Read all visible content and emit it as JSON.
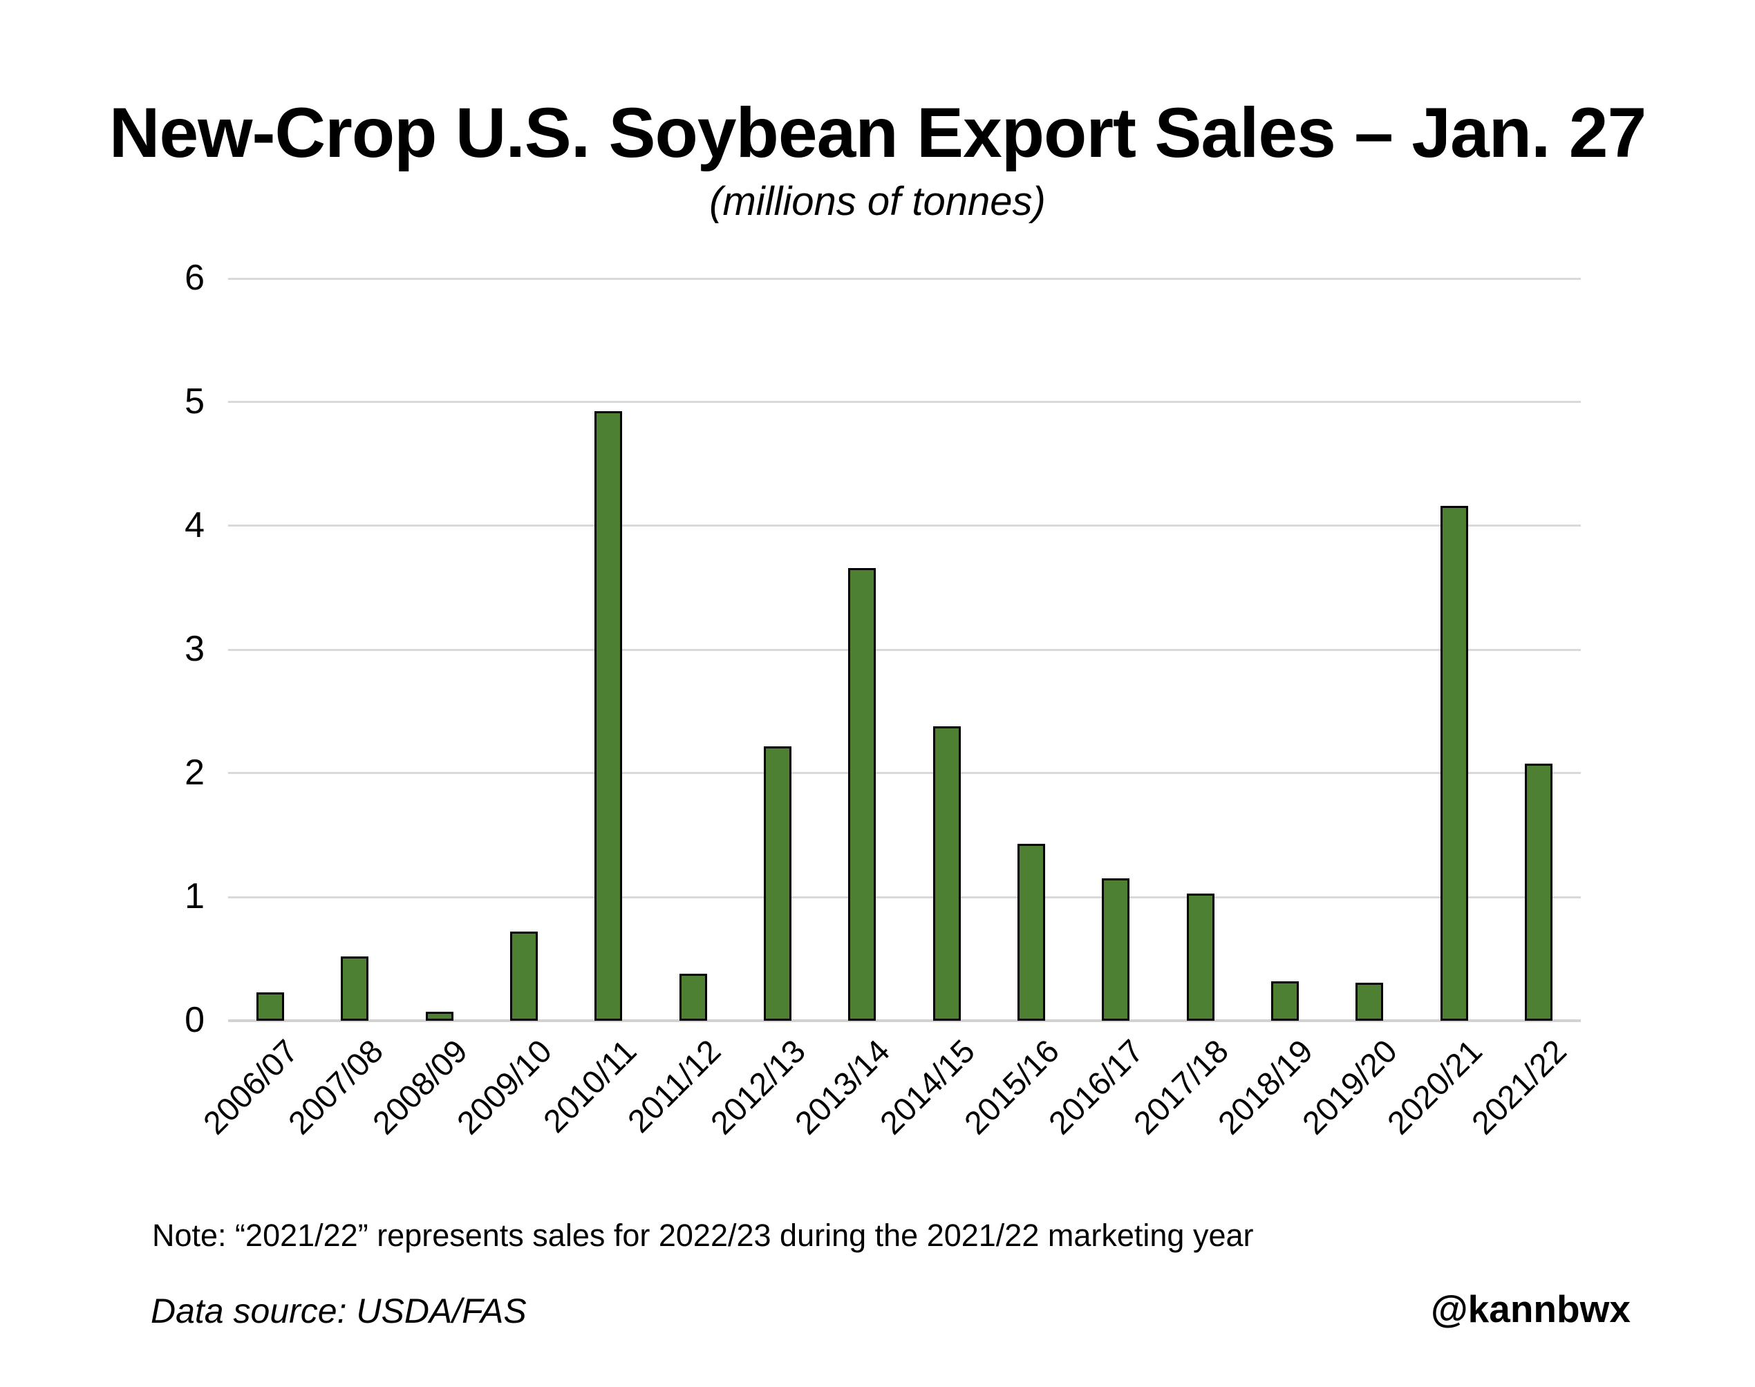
{
  "title": "New-Crop U.S. Soybean Export Sales – Jan. 27",
  "subtitle": "(millions of tonnes)",
  "note": "Note: “2021/22” represents sales for 2022/23 during the 2021/22 marketing year",
  "source": "Data source: USDA/FAS",
  "credit": "@kannbwx",
  "colors": {
    "bar_fill": "#4e8033",
    "bar_border": "#000000",
    "gridline": "#d9d9d9",
    "axis_line": "#d2d2d2",
    "text": "#000000",
    "background": "#ffffff"
  },
  "chart_data": {
    "type": "bar",
    "title": "New-Crop U.S. Soybean Export Sales – Jan. 27",
    "subtitle": "(millions of tonnes)",
    "xlabel": "",
    "ylabel": "",
    "categories": [
      "2006/07",
      "2007/08",
      "2008/09",
      "2009/10",
      "2010/11",
      "2011/12",
      "2012/13",
      "2013/14",
      "2014/15",
      "2015/16",
      "2016/17",
      "2017/18",
      "2018/19",
      "2019/20",
      "2020/21",
      "2021/22"
    ],
    "values": [
      0.23,
      0.52,
      0.07,
      0.72,
      4.93,
      0.38,
      2.22,
      3.66,
      2.38,
      1.43,
      1.15,
      1.03,
      0.32,
      0.31,
      4.16,
      2.08
    ],
    "ylim": [
      0,
      6
    ],
    "yticks": [
      0,
      1,
      2,
      3,
      4,
      5,
      6
    ],
    "grid": true,
    "gridline_orientation": "horizontal",
    "legend": false,
    "x_tick_rotation_deg": 45
  }
}
